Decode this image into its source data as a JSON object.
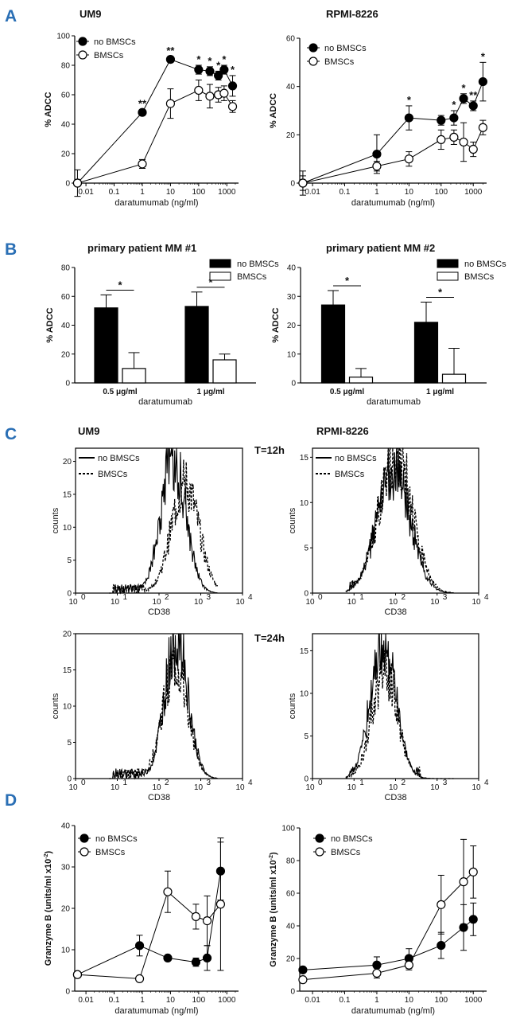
{
  "panel_labels": [
    "A",
    "B",
    "C",
    "D"
  ],
  "chart_data": [
    {
      "panel": "A",
      "type": "line",
      "title": "UM9",
      "xlabel": "daratumumab (ng/ml)",
      "ylabel": "% ADCC",
      "xscale": "log",
      "xticks": [
        "0.01",
        "0.1",
        "1",
        "10",
        "100",
        "1000"
      ],
      "ylim": [
        0,
        100
      ],
      "yticks": [
        "0",
        "20",
        "40",
        "60",
        "80",
        "100"
      ],
      "legend_position": "top-left",
      "series": [
        {
          "name": "no BMSCs",
          "marker": "filled",
          "x": [
            0.005,
            1,
            10,
            100,
            250,
            500,
            800,
            1600
          ],
          "y": [
            0,
            48,
            84,
            77,
            76,
            73,
            77,
            66
          ],
          "err": [
            0,
            2,
            2,
            3,
            3,
            3,
            3,
            7
          ],
          "stars": [
            "",
            "**",
            "**",
            "*",
            "*",
            "*",
            "*",
            "*"
          ]
        },
        {
          "name": "BMSCs",
          "marker": "open",
          "x": [
            0.005,
            1,
            10,
            100,
            250,
            500,
            800,
            1600
          ],
          "y": [
            0,
            13,
            54,
            63,
            59,
            60,
            61,
            52
          ],
          "err": [
            9,
            3,
            10,
            7,
            8,
            5,
            5,
            4
          ]
        }
      ]
    },
    {
      "panel": "A",
      "type": "line",
      "title": "RPMI-8226",
      "xlabel": "daratumumab (ng/ml)",
      "ylabel": "% ADCC",
      "xscale": "log",
      "xticks": [
        "0.01",
        "0.1",
        "1",
        "10",
        "100",
        "1000"
      ],
      "ylim": [
        0,
        60
      ],
      "yticks": [
        "0",
        "20",
        "40",
        "60"
      ],
      "legend_position": "top-left",
      "series": [
        {
          "name": "no BMSCs",
          "marker": "filled",
          "x": [
            0.005,
            1,
            10,
            100,
            250,
            500,
            1000,
            2000
          ],
          "y": [
            0,
            12,
            27,
            26,
            27,
            35,
            32,
            42
          ],
          "err": [
            5,
            8,
            5,
            2,
            3,
            2,
            2,
            8
          ],
          "stars": [
            "",
            "",
            "*",
            "",
            "*",
            "*",
            "**",
            "*"
          ]
        },
        {
          "name": "BMSCs",
          "marker": "open",
          "x": [
            0.005,
            1,
            10,
            100,
            250,
            500,
            1000,
            2000
          ],
          "y": [
            0,
            7,
            10,
            18,
            19,
            17,
            14,
            23
          ],
          "err": [
            3,
            2,
            3,
            4,
            3,
            8,
            3,
            3
          ]
        }
      ]
    },
    {
      "panel": "B",
      "type": "bar",
      "title": "primary  patient MM  #1",
      "xlabel": "daratumumab",
      "ylabel": "% ADCC",
      "categories": [
        "0.5 μg/ml",
        "1 μg/ml"
      ],
      "ylim": [
        0,
        80
      ],
      "yticks": [
        "0",
        "20",
        "40",
        "60",
        "80"
      ],
      "legend_position": "top-right",
      "series": [
        {
          "name": "no BMSCs",
          "fill": "black",
          "values": [
            52,
            53
          ],
          "err": [
            9,
            10
          ]
        },
        {
          "name": "BMSCs",
          "fill": "white",
          "values": [
            10,
            16
          ],
          "err": [
            11,
            4
          ]
        }
      ],
      "significance": [
        "*",
        "*"
      ]
    },
    {
      "panel": "B",
      "type": "bar",
      "title": "primary  patient MM  #2",
      "xlabel": "daratumumab",
      "ylabel": "% ADCC",
      "categories": [
        "0.5 μg/ml",
        "1 μg/ml"
      ],
      "ylim": [
        0,
        40
      ],
      "yticks": [
        "0",
        "10",
        "20",
        "30",
        "40"
      ],
      "legend_position": "top-right",
      "series": [
        {
          "name": "no BMSCs",
          "fill": "black",
          "values": [
            27,
            21
          ],
          "err": [
            5,
            7
          ]
        },
        {
          "name": "BMSCs",
          "fill": "white",
          "values": [
            2,
            3
          ],
          "err": [
            3,
            9
          ]
        }
      ],
      "significance": [
        "*",
        "*"
      ]
    },
    {
      "panel": "C",
      "type": "histogram",
      "title": "UM9",
      "timepoint": "T=12h",
      "xlabel": "CD38",
      "ylabel": "counts",
      "xscale": "log",
      "xticks": [
        "10",
        "10",
        "10",
        "10",
        "10"
      ],
      "xtick_exp": [
        "0",
        "1",
        "2",
        "3",
        "4"
      ],
      "ylim": [
        0,
        22
      ],
      "yticks": [
        "0",
        "5",
        "10",
        "15",
        "20"
      ],
      "legend_position": "top-left",
      "series": [
        {
          "name": "no BMSCs",
          "style": "solid",
          "peak_x": 220,
          "peak_y": 21,
          "spread": 0.3
        },
        {
          "name": "BMSCs",
          "style": "dashed",
          "peak_x": 420,
          "peak_y": 17,
          "spread": 0.33
        }
      ]
    },
    {
      "panel": "C",
      "type": "histogram",
      "title": "RPMI-8226",
      "timepoint": "T=12h",
      "xlabel": "CD38",
      "ylabel": "counts",
      "xscale": "log",
      "xticks": [
        "10",
        "10",
        "10",
        "10",
        "10"
      ],
      "xtick_exp": [
        "0",
        "1",
        "2",
        "3",
        "4"
      ],
      "ylim": [
        0,
        16
      ],
      "yticks": [
        "0",
        "5",
        "10",
        "15"
      ],
      "legend_position": "top-left",
      "series": [
        {
          "name": "no BMSCs",
          "style": "solid",
          "peak_x": 90,
          "peak_y": 14,
          "spread": 0.4
        },
        {
          "name": "BMSCs",
          "style": "dashed",
          "peak_x": 100,
          "peak_y": 16,
          "spread": 0.4
        }
      ]
    },
    {
      "panel": "C",
      "type": "histogram",
      "title": "UM9",
      "timepoint": "T=24h",
      "xlabel": "CD38",
      "ylabel": "counts",
      "xscale": "log",
      "xticks": [
        "10",
        "10",
        "10",
        "10",
        "10"
      ],
      "xtick_exp": [
        "0",
        "1",
        "2",
        "3",
        "4"
      ],
      "ylim": [
        0,
        20
      ],
      "yticks": [
        "0",
        "5",
        "10",
        "15",
        "20"
      ],
      "series": [
        {
          "name": "no BMSCs",
          "style": "solid",
          "peak_x": 260,
          "peak_y": 20,
          "spread": 0.28
        },
        {
          "name": "BMSCs",
          "style": "dashed",
          "peak_x": 240,
          "peak_y": 16,
          "spread": 0.3
        }
      ]
    },
    {
      "panel": "C",
      "type": "histogram",
      "title": "RPMI-8226",
      "timepoint": "T=24h",
      "xlabel": "CD38",
      "ylabel": "counts",
      "xscale": "log",
      "xticks": [
        "10",
        "10",
        "10",
        "10",
        "10"
      ],
      "xtick_exp": [
        "0",
        "1",
        "2",
        "3",
        "4"
      ],
      "ylim": [
        0,
        17
      ],
      "yticks": [
        "0",
        "5",
        "10",
        "15"
      ],
      "series": [
        {
          "name": "no BMSCs",
          "style": "solid",
          "peak_x": 50,
          "peak_y": 17,
          "spread": 0.3
        },
        {
          "name": "BMSCs",
          "style": "dashed",
          "peak_x": 55,
          "peak_y": 13,
          "spread": 0.3
        }
      ]
    },
    {
      "panel": "D",
      "type": "line",
      "xlabel": "daratumumab (ng/ml)",
      "ylabel": "Granzyme  B (units/ml x10",
      "ylabel_sup": "-2",
      "ylabel_end": ")",
      "xscale": "log",
      "xticks": [
        "0.01",
        "0.1",
        "1",
        "10",
        "100",
        "1000"
      ],
      "ylim": [
        0,
        40
      ],
      "yticks": [
        "0",
        "10",
        "20",
        "30",
        "40"
      ],
      "legend_position": "top-left",
      "series": [
        {
          "name": "no BMSCs",
          "marker": "filled",
          "x": [
            0.005,
            0.8,
            8,
            80,
            200,
            600
          ],
          "y": [
            4,
            11,
            8,
            7,
            8,
            29
          ],
          "err": [
            0,
            2.5,
            0,
            1,
            3,
            7
          ]
        },
        {
          "name": "BMSCs",
          "marker": "open",
          "x": [
            0.005,
            0.8,
            8,
            80,
            200,
            600
          ],
          "y": [
            4,
            3,
            24,
            18,
            17,
            21
          ],
          "err": [
            0,
            0,
            5,
            3,
            6,
            16
          ]
        }
      ]
    },
    {
      "panel": "D",
      "type": "line",
      "xlabel": "daratumumab (ng/ml)",
      "ylabel": "Granzyme  B (units/ml x10",
      "ylabel_sup": "-2",
      "ylabel_end": ")",
      "xscale": "log",
      "xticks": [
        "0.01",
        "0.1",
        "1",
        "10",
        "100",
        "1000"
      ],
      "ylim": [
        0,
        100
      ],
      "yticks": [
        "0",
        "20",
        "40",
        "60",
        "80",
        "100"
      ],
      "legend_position": "top-left",
      "series": [
        {
          "name": "no BMSCs",
          "marker": "filled",
          "x": [
            0.005,
            1,
            10,
            100,
            500,
            1000
          ],
          "y": [
            13,
            16,
            20,
            28,
            39,
            44
          ],
          "err": [
            0,
            5,
            6,
            8,
            14,
            10
          ]
        },
        {
          "name": "BMSCs",
          "marker": "open",
          "x": [
            0.005,
            1,
            10,
            100,
            500,
            1000
          ],
          "y": [
            7,
            11,
            16,
            53,
            67,
            73
          ],
          "err": [
            0,
            3,
            3,
            18,
            26,
            16
          ]
        }
      ]
    }
  ]
}
